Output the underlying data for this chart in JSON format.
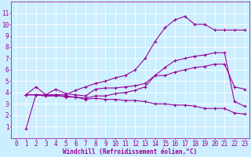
{
  "background_color": "#cceeff",
  "grid_color": "#aaccdd",
  "line_color": "#990099",
  "markersize": 2.0,
  "linewidth": 0.8,
  "xlabel": "Windchill (Refroidissement éolien,°C)",
  "xlabel_fontsize": 5.5,
  "tick_fontsize": 5.5,
  "xlim": [
    -0.5,
    23.5
  ],
  "ylim": [
    0,
    12
  ],
  "xticks": [
    0,
    1,
    2,
    3,
    4,
    5,
    6,
    7,
    8,
    9,
    10,
    11,
    12,
    13,
    14,
    15,
    16,
    17,
    18,
    19,
    20,
    21,
    22,
    23
  ],
  "yticks": [
    1,
    2,
    3,
    4,
    5,
    6,
    7,
    8,
    9,
    10,
    11
  ],
  "series": [
    {
      "x": [
        1,
        2,
        3,
        4,
        5,
        6,
        7,
        8,
        9,
        10,
        11,
        12,
        13,
        14,
        15,
        16,
        17,
        18,
        19,
        20,
        21,
        22,
        23
      ],
      "y": [
        0.8,
        3.8,
        3.7,
        3.7,
        3.7,
        3.6,
        3.4,
        3.5,
        3.4,
        3.4,
        3.3,
        3.3,
        3.2,
        3.0,
        3.0,
        2.9,
        2.9,
        2.8,
        2.6,
        2.6,
        2.6,
        2.2,
        2.1
      ]
    },
    {
      "x": [
        1,
        2,
        3,
        4,
        5,
        6,
        7,
        8,
        9,
        10,
        11,
        12,
        13,
        14,
        15,
        16,
        17,
        18,
        19,
        20,
        21,
        22,
        23
      ],
      "y": [
        3.8,
        4.5,
        3.8,
        3.8,
        3.8,
        4.2,
        4.5,
        4.8,
        5.0,
        5.3,
        5.5,
        6.0,
        7.0,
        8.5,
        9.7,
        10.4,
        10.7,
        10.0,
        10.0,
        9.5,
        9.5,
        9.5,
        9.5
      ]
    },
    {
      "x": [
        1,
        2,
        3,
        4,
        5,
        6,
        7,
        8,
        9,
        10,
        11,
        12,
        13,
        14,
        15,
        16,
        17,
        18,
        19,
        20,
        21,
        22,
        23
      ],
      "y": [
        3.8,
        3.8,
        3.8,
        4.3,
        3.9,
        3.8,
        3.7,
        4.3,
        4.4,
        4.4,
        4.5,
        4.6,
        4.8,
        5.5,
        6.2,
        6.8,
        7.0,
        7.2,
        7.3,
        7.5,
        7.5,
        3.2,
        2.8
      ]
    },
    {
      "x": [
        1,
        2,
        3,
        4,
        5,
        6,
        7,
        8,
        9,
        10,
        11,
        12,
        13,
        14,
        15,
        16,
        17,
        18,
        19,
        20,
        21,
        22,
        23
      ],
      "y": [
        3.8,
        3.8,
        3.7,
        3.8,
        3.6,
        3.6,
        3.5,
        3.7,
        3.7,
        3.9,
        4.0,
        4.2,
        4.5,
        5.5,
        5.5,
        5.8,
        6.0,
        6.2,
        6.3,
        6.5,
        6.5,
        4.5,
        4.3
      ]
    }
  ]
}
